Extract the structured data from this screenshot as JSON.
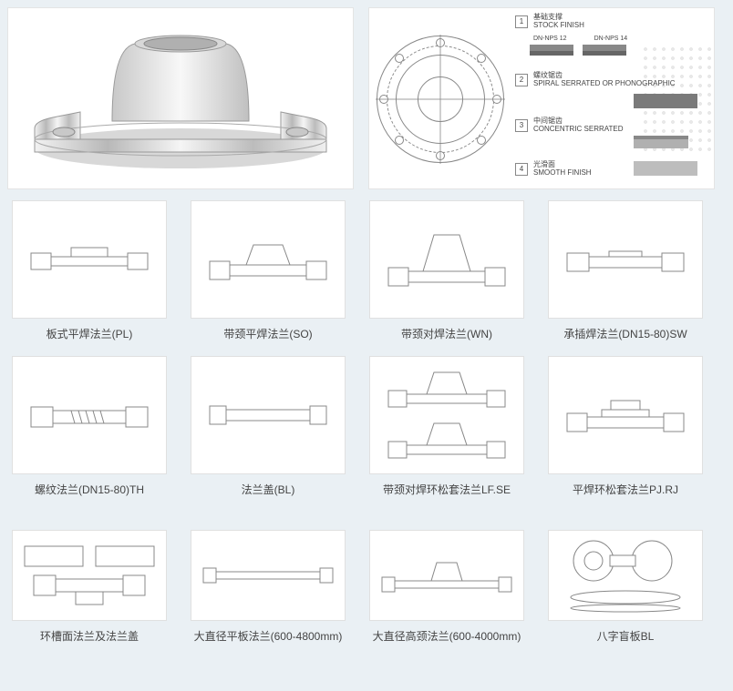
{
  "spec_panel": {
    "rows": [
      {
        "idx": "1",
        "cn": "基础支撑",
        "en": "STOCK FINISH",
        "sub1": "DN-NPS 12",
        "sub2": "DN-NPS 14"
      },
      {
        "idx": "2",
        "cn": "螺纹锯齿",
        "en": "SPIRAL SERRATED OR PHONOGRAPHIC"
      },
      {
        "idx": "3",
        "cn": "中间锯齿",
        "en": "CONCENTRIC SERRATED"
      },
      {
        "idx": "4",
        "cn": "光滑面",
        "en": "SMOOTH FINISH"
      }
    ],
    "flange_face": {
      "outer_d": 140,
      "mid_d": 98,
      "inner_d": 50,
      "bolt_circle_d": 118,
      "bolt_count": 8,
      "stroke": "#888888"
    }
  },
  "cards": [
    {
      "id": "pl",
      "label": "板式平焊法兰(PL)",
      "variant": "flat"
    },
    {
      "id": "so",
      "label": "带颈平焊法兰(SO)",
      "variant": "neck-low"
    },
    {
      "id": "wn",
      "label": "带颈对焊法兰(WN)",
      "variant": "neck-high"
    },
    {
      "id": "sw",
      "label": "承插焊法兰(DN15-80)SW",
      "variant": "socket"
    },
    {
      "id": "th",
      "label": "螺纹法兰(DN15-80)TH",
      "variant": "thread"
    },
    {
      "id": "bl",
      "label": "法兰盖(BL)",
      "variant": "blind"
    },
    {
      "id": "lfse",
      "label": "带颈对焊环松套法兰LF.SE",
      "variant": "double"
    },
    {
      "id": "pjrj",
      "label": "平焊环松套法兰PJ.RJ",
      "variant": "loose"
    },
    {
      "id": "ring",
      "label": "环槽面法兰及法兰盖",
      "variant": "groove",
      "short": true
    },
    {
      "id": "big-flat",
      "label": "大直径平板法兰(600-4800mm)",
      "variant": "long",
      "short": true
    },
    {
      "id": "big-neck",
      "label": "大直径高颈法兰(600-4000mm)",
      "variant": "long-neck",
      "short": true
    },
    {
      "id": "fig8",
      "label": "八字盲板BL",
      "variant": "figure8",
      "short": true
    }
  ],
  "colors": {
    "page_bg": "#eaf0f4",
    "card_bg": "#ffffff",
    "border": "#e0e0e0",
    "stroke": "#888888",
    "text": "#444444"
  }
}
